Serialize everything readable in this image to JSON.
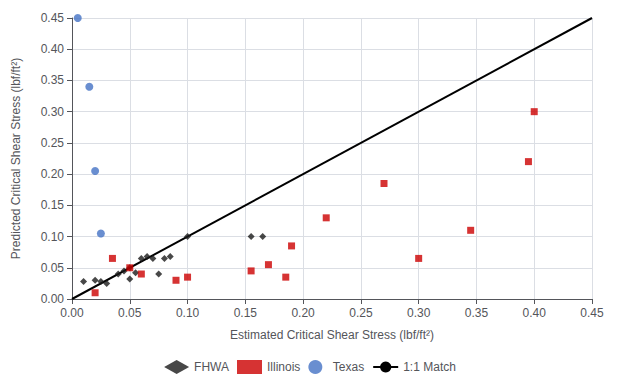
{
  "chart_data": {
    "type": "scatter",
    "xlabel": "Estimated Critical Shear Stress (lbf/ft²)",
    "ylabel": "Predicted Critical Shear Stress (lbf/ft²)",
    "xlim": [
      0,
      0.45
    ],
    "ylim": [
      0,
      0.45
    ],
    "xticks": [
      {
        "value": 0.0,
        "label": "0.00"
      },
      {
        "value": 0.05,
        "label": "0.05"
      },
      {
        "value": 0.1,
        "label": "0.10"
      },
      {
        "value": 0.15,
        "label": "0.15"
      },
      {
        "value": 0.2,
        "label": "0.20"
      },
      {
        "value": 0.25,
        "label": "0.25"
      },
      {
        "value": 0.3,
        "label": "0.30"
      },
      {
        "value": 0.35,
        "label": "0.35"
      },
      {
        "value": 0.4,
        "label": "0.40"
      },
      {
        "value": 0.45,
        "label": "0.45"
      }
    ],
    "yticks": [
      {
        "value": 0.0,
        "label": "0.00"
      },
      {
        "value": 0.05,
        "label": "0.05"
      },
      {
        "value": 0.1,
        "label": "0.10"
      },
      {
        "value": 0.15,
        "label": "0.15"
      },
      {
        "value": 0.2,
        "label": "0.20"
      },
      {
        "value": 0.25,
        "label": "0.25"
      },
      {
        "value": 0.3,
        "label": "0.30"
      },
      {
        "value": 0.35,
        "label": "0.35"
      },
      {
        "value": 0.4,
        "label": "0.40"
      },
      {
        "value": 0.45,
        "label": "0.45"
      }
    ],
    "grid": true,
    "legend": "bottom",
    "series": [
      {
        "name": "FHWA",
        "type": "scatter",
        "color": "#1a1a1a",
        "marker": "diamond",
        "x": [
          0.01,
          0.02,
          0.025,
          0.03,
          0.04,
          0.045,
          0.05,
          0.05,
          0.055,
          0.06,
          0.065,
          0.07,
          0.075,
          0.08,
          0.085,
          0.1,
          0.155,
          0.165
        ],
        "values": [
          0.028,
          0.03,
          0.028,
          0.025,
          0.04,
          0.045,
          0.05,
          0.032,
          0.042,
          0.065,
          0.068,
          0.065,
          0.04,
          0.065,
          0.068,
          0.1,
          0.1,
          0.1
        ]
      },
      {
        "name": "Illinois",
        "type": "scatter",
        "color": "#cc0000",
        "marker": "square",
        "x": [
          0.02,
          0.035,
          0.05,
          0.06,
          0.09,
          0.1,
          0.155,
          0.17,
          0.185,
          0.19,
          0.22,
          0.27,
          0.3,
          0.345,
          0.395,
          0.4
        ],
        "values": [
          0.01,
          0.065,
          0.05,
          0.04,
          0.03,
          0.035,
          0.045,
          0.055,
          0.035,
          0.085,
          0.13,
          0.185,
          0.065,
          0.11,
          0.22,
          0.3
        ]
      },
      {
        "name": "Texas",
        "type": "scatter",
        "color": "#4472c4",
        "marker": "circle",
        "x": [
          0.005,
          0.015,
          0.02,
          0.025
        ],
        "values": [
          0.45,
          0.34,
          0.205,
          0.105
        ]
      },
      {
        "name": "1:1 Match",
        "type": "line",
        "color": "#000000",
        "line_style": "solid",
        "x": [
          0,
          0.45
        ],
        "values": [
          0,
          0.45
        ]
      }
    ]
  }
}
